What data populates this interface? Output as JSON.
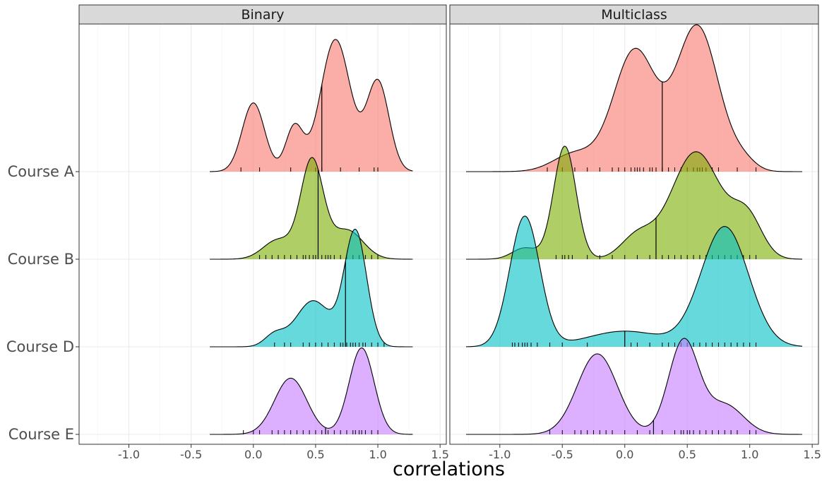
{
  "chart_data": {
    "type": "ridgeline",
    "xlabel": "correlations",
    "ylabel": "",
    "xlim": [
      -1.4,
      1.55
    ],
    "xticks": [
      -1.0,
      -0.5,
      0.0,
      0.5,
      1.0,
      1.5
    ],
    "xtick_labels": [
      "-1.0",
      "-0.5",
      "0.0",
      "0.5",
      "1.0",
      "1.5"
    ],
    "grid": true,
    "legend": "none",
    "categories": [
      "Course A",
      "Course B",
      "Course D",
      "Course E"
    ],
    "colors": {
      "Course A": "#F8766D",
      "Course B": "#7CAE00",
      "Course D": "#00BFC4",
      "Course E": "#C77CFF"
    },
    "panels": [
      {
        "title": "Binary",
        "ridges": [
          {
            "category": "Course A",
            "range": [
              -0.35,
              1.28
            ],
            "median": 0.55,
            "peaks": [
              {
                "mean": 0.0,
                "sd": 0.09,
                "height": 0.52
              },
              {
                "mean": 0.33,
                "sd": 0.07,
                "height": 0.34
              },
              {
                "mean": 0.66,
                "sd": 0.12,
                "height": 1.0
              },
              {
                "mean": 1.0,
                "sd": 0.09,
                "height": 0.68
              }
            ],
            "rug": [
              -0.1,
              0.05,
              0.3,
              0.5,
              0.55,
              0.7,
              0.85,
              0.97,
              1.0
            ]
          },
          {
            "category": "Course B",
            "range": [
              -0.35,
              1.28
            ],
            "median": 0.52,
            "peaks": [
              {
                "mean": 0.47,
                "sd": 0.09,
                "height": 1.0
              },
              {
                "mean": 0.2,
                "sd": 0.12,
                "height": 0.2
              },
              {
                "mean": 0.75,
                "sd": 0.13,
                "height": 0.3
              }
            ],
            "rug": [
              0.05,
              0.1,
              0.15,
              0.2,
              0.25,
              0.3,
              0.35,
              0.4,
              0.42,
              0.45,
              0.48,
              0.5,
              0.52,
              0.55,
              0.58,
              0.6,
              0.62,
              0.65,
              0.7,
              0.75,
              0.8,
              0.85,
              0.9,
              0.95,
              1.0
            ]
          },
          {
            "category": "Course D",
            "range": [
              -0.35,
              1.28
            ],
            "median": 0.74,
            "peaks": [
              {
                "mean": 0.82,
                "sd": 0.09,
                "height": 1.0
              },
              {
                "mean": 0.48,
                "sd": 0.14,
                "height": 0.4
              },
              {
                "mean": 0.17,
                "sd": 0.08,
                "height": 0.1
              }
            ],
            "rug": [
              0.17,
              0.25,
              0.3,
              0.4,
              0.45,
              0.5,
              0.55,
              0.6,
              0.65,
              0.7,
              0.72,
              0.75,
              0.78,
              0.8,
              0.82,
              0.85,
              0.88,
              0.9,
              0.95,
              1.0,
              1.05
            ]
          },
          {
            "category": "Course E",
            "range": [
              -0.35,
              1.28
            ],
            "median": 0.58,
            "peaks": [
              {
                "mean": 0.3,
                "sd": 0.13,
                "height": 0.65
              },
              {
                "mean": 0.87,
                "sd": 0.1,
                "height": 1.0
              }
            ],
            "rug": [
              -0.08,
              0.0,
              0.05,
              0.15,
              0.2,
              0.25,
              0.3,
              0.35,
              0.4,
              0.45,
              0.5,
              0.55,
              0.6,
              0.65,
              0.7,
              0.75,
              0.8,
              0.82,
              0.85,
              0.87,
              0.9,
              0.95,
              1.0
            ]
          }
        ]
      },
      {
        "title": "Multiclass",
        "ridges": [
          {
            "category": "Course A",
            "range": [
              -1.27,
              1.42
            ],
            "median": 0.3,
            "peaks": [
              {
                "mean": 0.08,
                "sd": 0.17,
                "height": 0.8
              },
              {
                "mean": 0.58,
                "sd": 0.17,
                "height": 0.96
              },
              {
                "mean": -0.4,
                "sd": 0.17,
                "height": 0.12
              },
              {
                "mean": 0.95,
                "sd": 0.1,
                "height": 0.06
              }
            ],
            "rug": [
              -0.62,
              -0.5,
              -0.4,
              -0.3,
              -0.2,
              -0.1,
              -0.05,
              0.0,
              0.05,
              0.08,
              0.1,
              0.12,
              0.15,
              0.2,
              0.22,
              0.25,
              0.3,
              0.35,
              0.4,
              0.45,
              0.5,
              0.55,
              0.58,
              0.6,
              0.62,
              0.65,
              0.7,
              0.75,
              0.9,
              1.05
            ]
          },
          {
            "category": "Course B",
            "range": [
              -1.27,
              1.42
            ],
            "median": 0.25,
            "peaks": [
              {
                "mean": -0.48,
                "sd": 0.09,
                "height": 1.0
              },
              {
                "mean": 0.57,
                "sd": 0.2,
                "height": 0.95
              },
              {
                "mean": 0.98,
                "sd": 0.12,
                "height": 0.35
              },
              {
                "mean": 0.1,
                "sd": 0.13,
                "height": 0.2
              },
              {
                "mean": -0.8,
                "sd": 0.1,
                "height": 0.1
              }
            ],
            "rug": [
              -0.55,
              -0.5,
              -0.48,
              -0.45,
              -0.42,
              -0.3,
              -0.2,
              -0.1,
              0.0,
              0.1,
              0.2,
              0.3,
              0.35,
              0.4,
              0.45,
              0.5,
              0.55,
              0.6,
              0.65,
              0.7,
              0.75,
              0.8,
              0.85,
              0.9,
              0.95,
              1.0,
              1.05
            ]
          },
          {
            "category": "Course D",
            "range": [
              -1.27,
              1.42
            ],
            "median": 0.0,
            "peaks": [
              {
                "mean": -0.8,
                "sd": 0.12,
                "height": 1.0
              },
              {
                "mean": 0.8,
                "sd": 0.19,
                "height": 0.92
              },
              {
                "mean": 0.0,
                "sd": 0.3,
                "height": 0.12
              }
            ],
            "rug": [
              -0.9,
              -0.88,
              -0.85,
              -0.82,
              -0.8,
              -0.78,
              -0.75,
              -0.7,
              -0.6,
              -0.5,
              -0.3,
              0.05,
              0.1,
              0.2,
              0.3,
              0.35,
              0.4,
              0.45,
              0.5,
              0.55,
              0.6,
              0.65,
              0.7,
              0.75,
              0.8,
              0.85,
              0.9,
              0.95,
              1.0,
              1.05
            ]
          },
          {
            "category": "Course E",
            "range": [
              -1.27,
              1.42
            ],
            "median": 0.23,
            "peaks": [
              {
                "mean": -0.22,
                "sd": 0.16,
                "height": 0.82
              },
              {
                "mean": 0.47,
                "sd": 0.12,
                "height": 0.95
              },
              {
                "mean": 0.8,
                "sd": 0.15,
                "height": 0.3
              }
            ],
            "rug": [
              -0.6,
              -0.5,
              -0.4,
              -0.35,
              -0.3,
              -0.25,
              -0.2,
              -0.15,
              -0.1,
              0.0,
              0.1,
              0.2,
              0.3,
              0.4,
              0.45,
              0.47,
              0.5,
              0.52,
              0.55,
              0.6,
              0.65,
              0.7,
              0.75,
              0.8,
              0.85,
              0.9,
              1.0,
              1.05
            ]
          }
        ]
      }
    ]
  }
}
